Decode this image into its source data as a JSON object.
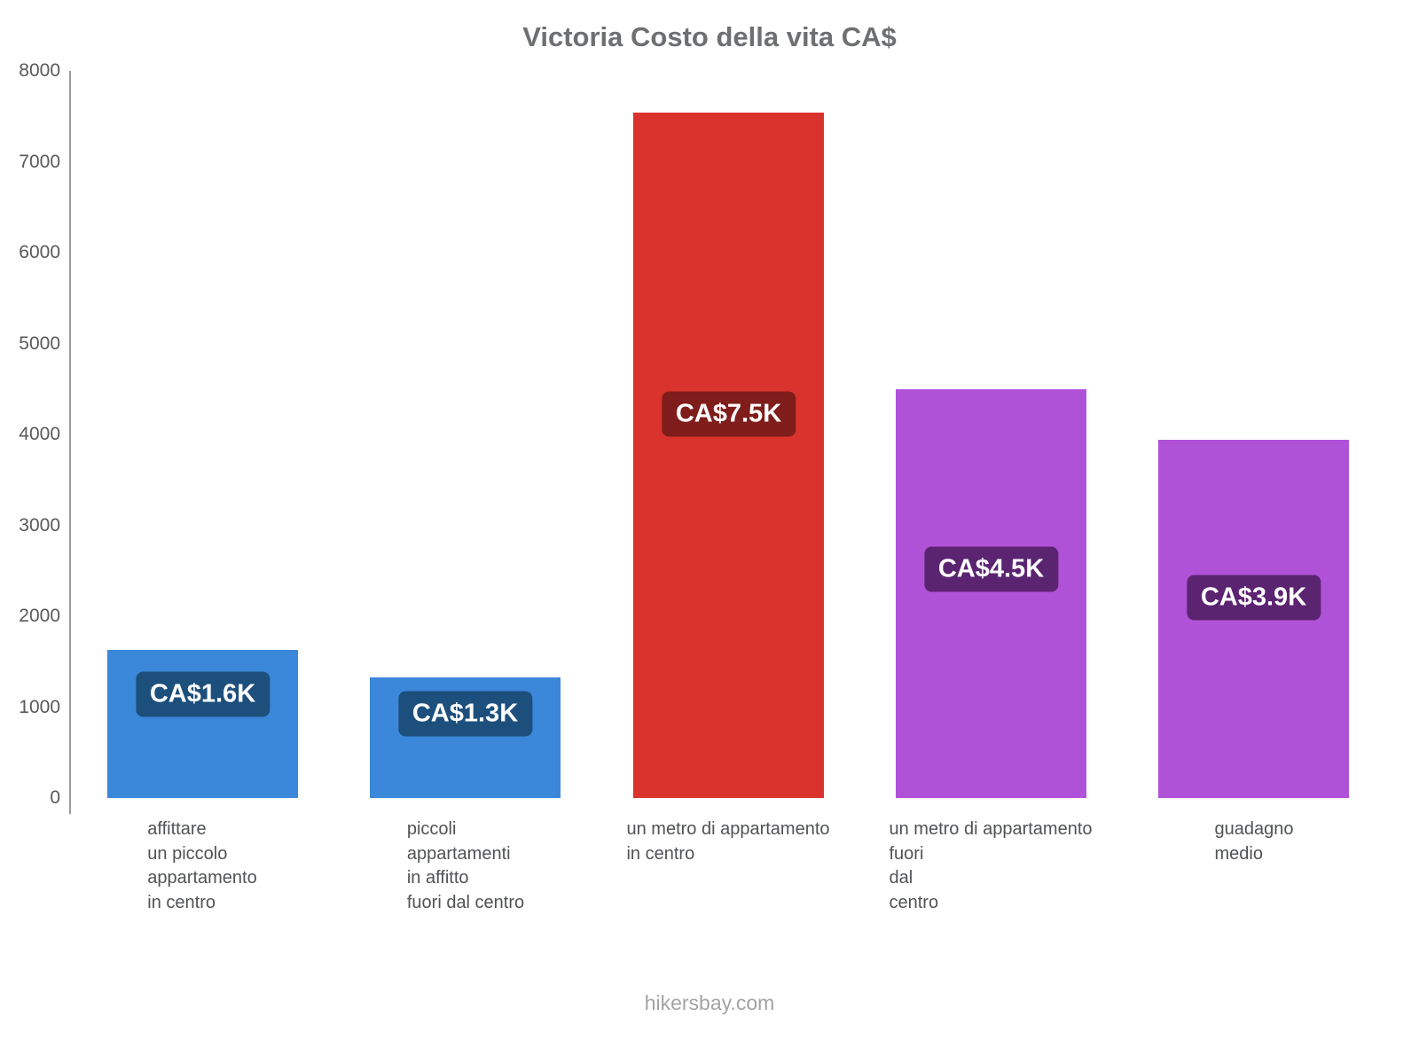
{
  "title": "Victoria Costo della vita CA$",
  "footer": "hikersbay.com",
  "axis": {
    "ymin": 0,
    "ymax": 8000,
    "yticks": [
      0,
      1000,
      2000,
      3000,
      4000,
      5000,
      6000,
      7000,
      8000
    ]
  },
  "chart_data": {
    "type": "bar",
    "title": "Victoria Costo della vita CA$",
    "xlabel": "",
    "ylabel": "",
    "ylim": [
      0,
      8000
    ],
    "yticks": [
      0,
      1000,
      2000,
      3000,
      4000,
      5000,
      6000,
      7000,
      8000
    ],
    "grid": false,
    "legend": false,
    "categories": [
      "affittare un piccolo appartamento in centro",
      "piccoli appartamenti in affitto fuori dal centro",
      "un metro di appartamento in centro",
      "un metro di appartamento fuori dal centro",
      "guadagno medio"
    ],
    "category_lines": [
      [
        "affittare",
        "un piccolo",
        "appartamento",
        "in centro"
      ],
      [
        "piccoli",
        "appartamenti",
        "in affitto",
        "fuori dal centro"
      ],
      [
        "un metro di appartamento",
        "in centro"
      ],
      [
        "un metro di appartamento",
        "fuori",
        "dal",
        "centro"
      ],
      [
        "guadagno",
        "medio"
      ]
    ],
    "values": [
      1630,
      1330,
      7540,
      4500,
      3940
    ],
    "value_labels": [
      "CA$1.6K",
      "CA$1.3K",
      "CA$7.5K",
      "CA$4.5K",
      "CA$3.9K"
    ],
    "bar_colors": [
      "#3b87d9",
      "#3b87d9",
      "#da322d",
      "#b052d8",
      "#b052d8"
    ],
    "label_bg_colors": [
      "#1d4f7c",
      "#1d4f7c",
      "#7f1d1b",
      "#5b2471",
      "#5b2471"
    ]
  }
}
